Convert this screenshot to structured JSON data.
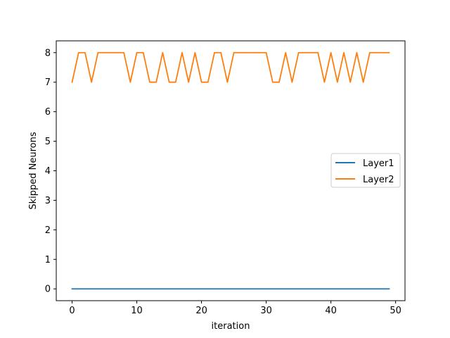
{
  "chart_data": {
    "type": "line",
    "title": "",
    "xlabel": "iteration",
    "ylabel": "Skipped Neurons",
    "xlim": [
      -2.45,
      51.45
    ],
    "ylim": [
      -0.4,
      8.4
    ],
    "xticks": [
      0,
      10,
      20,
      30,
      40,
      50
    ],
    "yticks": [
      0,
      1,
      2,
      3,
      4,
      5,
      6,
      7,
      8
    ],
    "x": [
      0,
      1,
      2,
      3,
      4,
      5,
      6,
      7,
      8,
      9,
      10,
      11,
      12,
      13,
      14,
      15,
      16,
      17,
      18,
      19,
      20,
      21,
      22,
      23,
      24,
      25,
      26,
      27,
      28,
      29,
      30,
      31,
      32,
      33,
      34,
      35,
      36,
      37,
      38,
      39,
      40,
      41,
      42,
      43,
      44,
      45,
      46,
      47,
      48,
      49
    ],
    "series": [
      {
        "name": "Layer1",
        "color": "#1f77b4",
        "values": [
          0,
          0,
          0,
          0,
          0,
          0,
          0,
          0,
          0,
          0,
          0,
          0,
          0,
          0,
          0,
          0,
          0,
          0,
          0,
          0,
          0,
          0,
          0,
          0,
          0,
          0,
          0,
          0,
          0,
          0,
          0,
          0,
          0,
          0,
          0,
          0,
          0,
          0,
          0,
          0,
          0,
          0,
          0,
          0,
          0,
          0,
          0,
          0,
          0,
          0
        ]
      },
      {
        "name": "Layer2",
        "color": "#ff7f0e",
        "values": [
          7,
          8,
          8,
          7,
          8,
          8,
          8,
          8,
          8,
          7,
          8,
          8,
          7,
          7,
          8,
          7,
          7,
          8,
          7,
          8,
          7,
          7,
          8,
          8,
          7,
          8,
          8,
          8,
          8,
          8,
          8,
          7,
          7,
          8,
          7,
          8,
          8,
          8,
          8,
          7,
          8,
          7,
          8,
          7,
          8,
          7,
          8,
          8,
          8,
          8
        ]
      }
    ],
    "grid": false,
    "legend_position": "center-right"
  }
}
